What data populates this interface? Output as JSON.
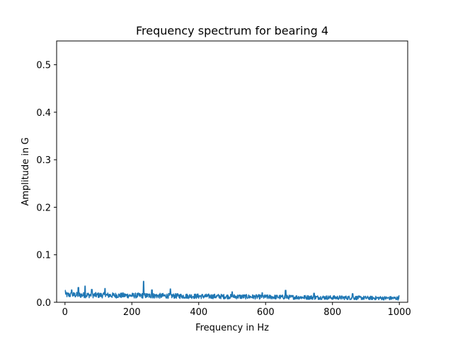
{
  "chart_data": {
    "type": "line",
    "title": "Frequency spectrum for bearing 4",
    "xlabel": "Frequency in Hz",
    "ylabel": "Amplitude in G",
    "xlim": [
      -25,
      1025
    ],
    "ylim": [
      0,
      0.55
    ],
    "x_ticks": [
      0,
      200,
      400,
      600,
      800,
      1000
    ],
    "x_tick_labels": [
      "0",
      "200",
      "400",
      "600",
      "800",
      "1000"
    ],
    "y_ticks": [
      0.0,
      0.1,
      0.2,
      0.3,
      0.4,
      0.5
    ],
    "y_tick_labels": [
      "0.0",
      "0.1",
      "0.2",
      "0.3",
      "0.4",
      "0.5"
    ],
    "grid": false,
    "series": [
      {
        "color": "#1f77b4",
        "x_range": [
          0,
          1000
        ],
        "n_points": 1024,
        "baseline_start": 0.015,
        "baseline_end": 0.008,
        "noise_amplitude": 0.012,
        "peaks": [
          {
            "x": 0,
            "y": 0.025
          },
          {
            "x": 20,
            "y": 0.026
          },
          {
            "x": 40,
            "y": 0.031
          },
          {
            "x": 60,
            "y": 0.034
          },
          {
            "x": 80,
            "y": 0.027
          },
          {
            "x": 120,
            "y": 0.029
          },
          {
            "x": 235,
            "y": 0.044
          },
          {
            "x": 260,
            "y": 0.026
          },
          {
            "x": 315,
            "y": 0.028
          },
          {
            "x": 500,
            "y": 0.022
          },
          {
            "x": 590,
            "y": 0.02
          },
          {
            "x": 660,
            "y": 0.025
          },
          {
            "x": 745,
            "y": 0.019
          },
          {
            "x": 860,
            "y": 0.018
          },
          {
            "x": 1000,
            "y": 0.014
          }
        ]
      }
    ]
  }
}
